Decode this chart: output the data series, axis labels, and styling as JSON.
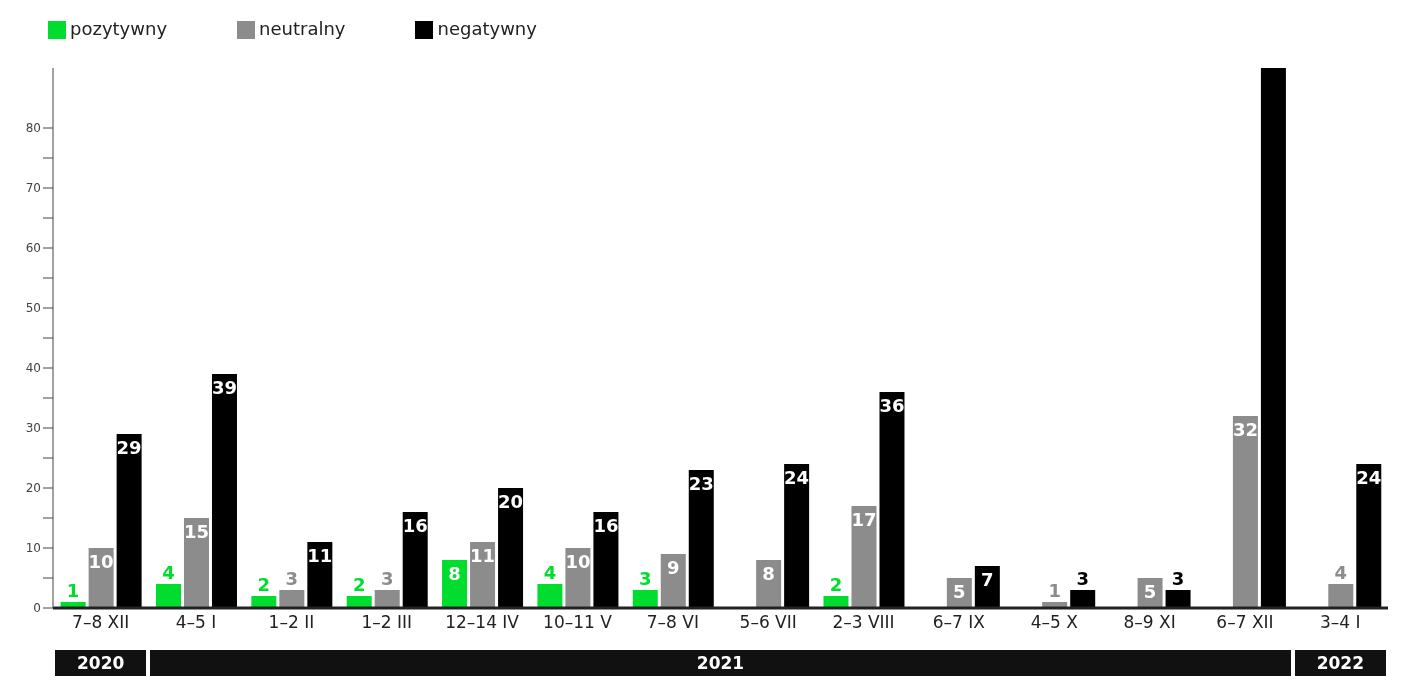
{
  "chart_data": {
    "type": "bar",
    "categories": [
      "7–8 XII",
      "4–5 I",
      "1–2 II",
      "1–2 III",
      "12–14 IV",
      "10–11 V",
      "7–8 VI",
      "5–6 VII",
      "2–3 VIII",
      "6–7 IX",
      "4–5 X",
      "8–9 XI",
      "6–7 XII",
      "3–4 I"
    ],
    "series": [
      {
        "name": "pozytywny",
        "color": "#00dd2e",
        "values": [
          1,
          4,
          2,
          2,
          8,
          4,
          3,
          0,
          2,
          0,
          0,
          0,
          0,
          0
        ],
        "value_labels": [
          "1",
          "4",
          "2",
          "2",
          "8",
          "4",
          "3",
          null,
          "2",
          null,
          null,
          null,
          null,
          null
        ]
      },
      {
        "name": "neutralny",
        "color": "#8c8c8c",
        "values": [
          10,
          15,
          3,
          3,
          11,
          10,
          9,
          8,
          17,
          5,
          1,
          5,
          32,
          4
        ],
        "value_labels": [
          "10",
          "15",
          "3",
          "3",
          "11",
          "10",
          "9",
          "8",
          "17",
          "5",
          "1",
          "5",
          "32",
          "4"
        ]
      },
      {
        "name": "negatywny",
        "color": "#000000",
        "values": [
          29,
          39,
          11,
          16,
          20,
          16,
          23,
          24,
          36,
          7,
          3,
          3,
          90,
          24
        ],
        "value_labels": [
          "29",
          "39",
          "11",
          "16",
          "20",
          "16",
          "23",
          "24",
          "36",
          "7",
          "3",
          "3",
          null,
          "24"
        ]
      }
    ],
    "ylim": [
      0,
      90
    ],
    "yticks": [
      0,
      {
        "value": 5,
        "label": null
      },
      10,
      {
        "value": 15,
        "label": null
      },
      20,
      {
        "value": 25,
        "label": null
      },
      30,
      {
        "value": 35,
        "label": null
      },
      40,
      {
        "value": 45,
        "label": null
      },
      50,
      {
        "value": 55,
        "label": null
      },
      60,
      {
        "value": 65,
        "label": null
      },
      70,
      {
        "value": 75,
        "label": null
      },
      80
    ],
    "grid": false,
    "legend": "top left",
    "annotations": [
      "2020",
      "2021",
      "2022"
    ]
  }
}
